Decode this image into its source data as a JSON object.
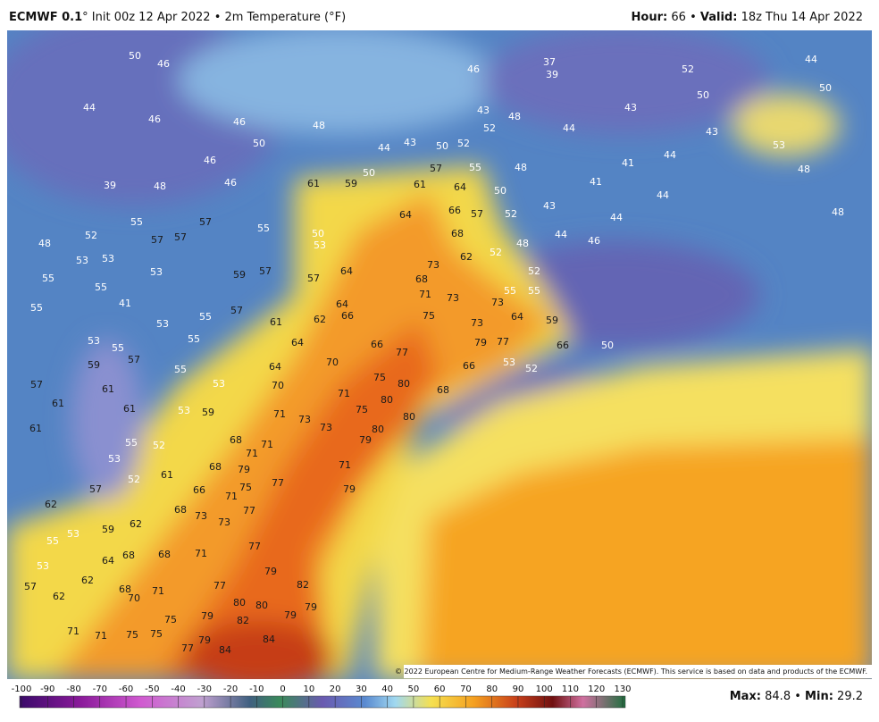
{
  "header": {
    "model": "ECMWF 0.1",
    "title_rest": "° Init 00z 12 Apr 2022 • 2m Temperature (°F)",
    "hour_label": "Hour:",
    "hour": "66",
    "sep": "•",
    "valid_label": "Valid:",
    "valid": "18z Thu 14 Apr 2022"
  },
  "map_labels": [
    50,
    46,
    44,
    46,
    46,
    48,
    50,
    46,
    46,
    48,
    39,
    52,
    53,
    53,
    57,
    57,
    57,
    55,
    53,
    55,
    57,
    59,
    57,
    61,
    59,
    50,
    44,
    43,
    50,
    52,
    46,
    37,
    39,
    43,
    48,
    52,
    44,
    43,
    43,
    44,
    41,
    41,
    44,
    44,
    44,
    48,
    52,
    55,
    55,
    52,
    68,
    62,
    73,
    68,
    71,
    73,
    73,
    64,
    59,
    73,
    79,
    77,
    75,
    64,
    64,
    66,
    62,
    61,
    64,
    66,
    77,
    70,
    64,
    70,
    71,
    75,
    80,
    80,
    75,
    80,
    80,
    79,
    73,
    71,
    73,
    71,
    68,
    71,
    68,
    79,
    71,
    79,
    77,
    71,
    75,
    66,
    68,
    73,
    73,
    77,
    77,
    79,
    71,
    77,
    80,
    80,
    82,
    79,
    79,
    79,
    82,
    84,
    84,
    79,
    77,
    75,
    75,
    71,
    68,
    70,
    62,
    62,
    57,
    71,
    71,
    75,
    55,
    53,
    53,
    64,
    68,
    68,
    62,
    59,
    62,
    57,
    53,
    52,
    61,
    52,
    55,
    61,
    61,
    57,
    59,
    53,
    55,
    57,
    61,
    61,
    55,
    53,
    53,
    59,
    55,
    55,
    55,
    48,
    50,
    52,
    50,
    44,
    53,
    48,
    48,
    66,
    50,
    53,
    52,
    66,
    68,
    57,
    50,
    52,
    43,
    64,
    61,
    64,
    66,
    57,
    55,
    48,
    53,
    57,
    50,
    55,
    53,
    55,
    41,
    46
  ],
  "copyright": "© 2022 European Centre for Medium-Range Weather Forecasts (ECMWF). This service is based on data and products of the ECMWF.",
  "colorbar": {
    "ticks": [
      -100,
      -90,
      -80,
      -70,
      -60,
      -50,
      -40,
      -30,
      -20,
      -10,
      0,
      10,
      20,
      30,
      40,
      50,
      60,
      70,
      80,
      90,
      100,
      110,
      120,
      130
    ]
  },
  "footer": {
    "max_label": "Max:",
    "max": 84.8,
    "sep": "•",
    "min_label": "Min:",
    "min": 29.2
  }
}
